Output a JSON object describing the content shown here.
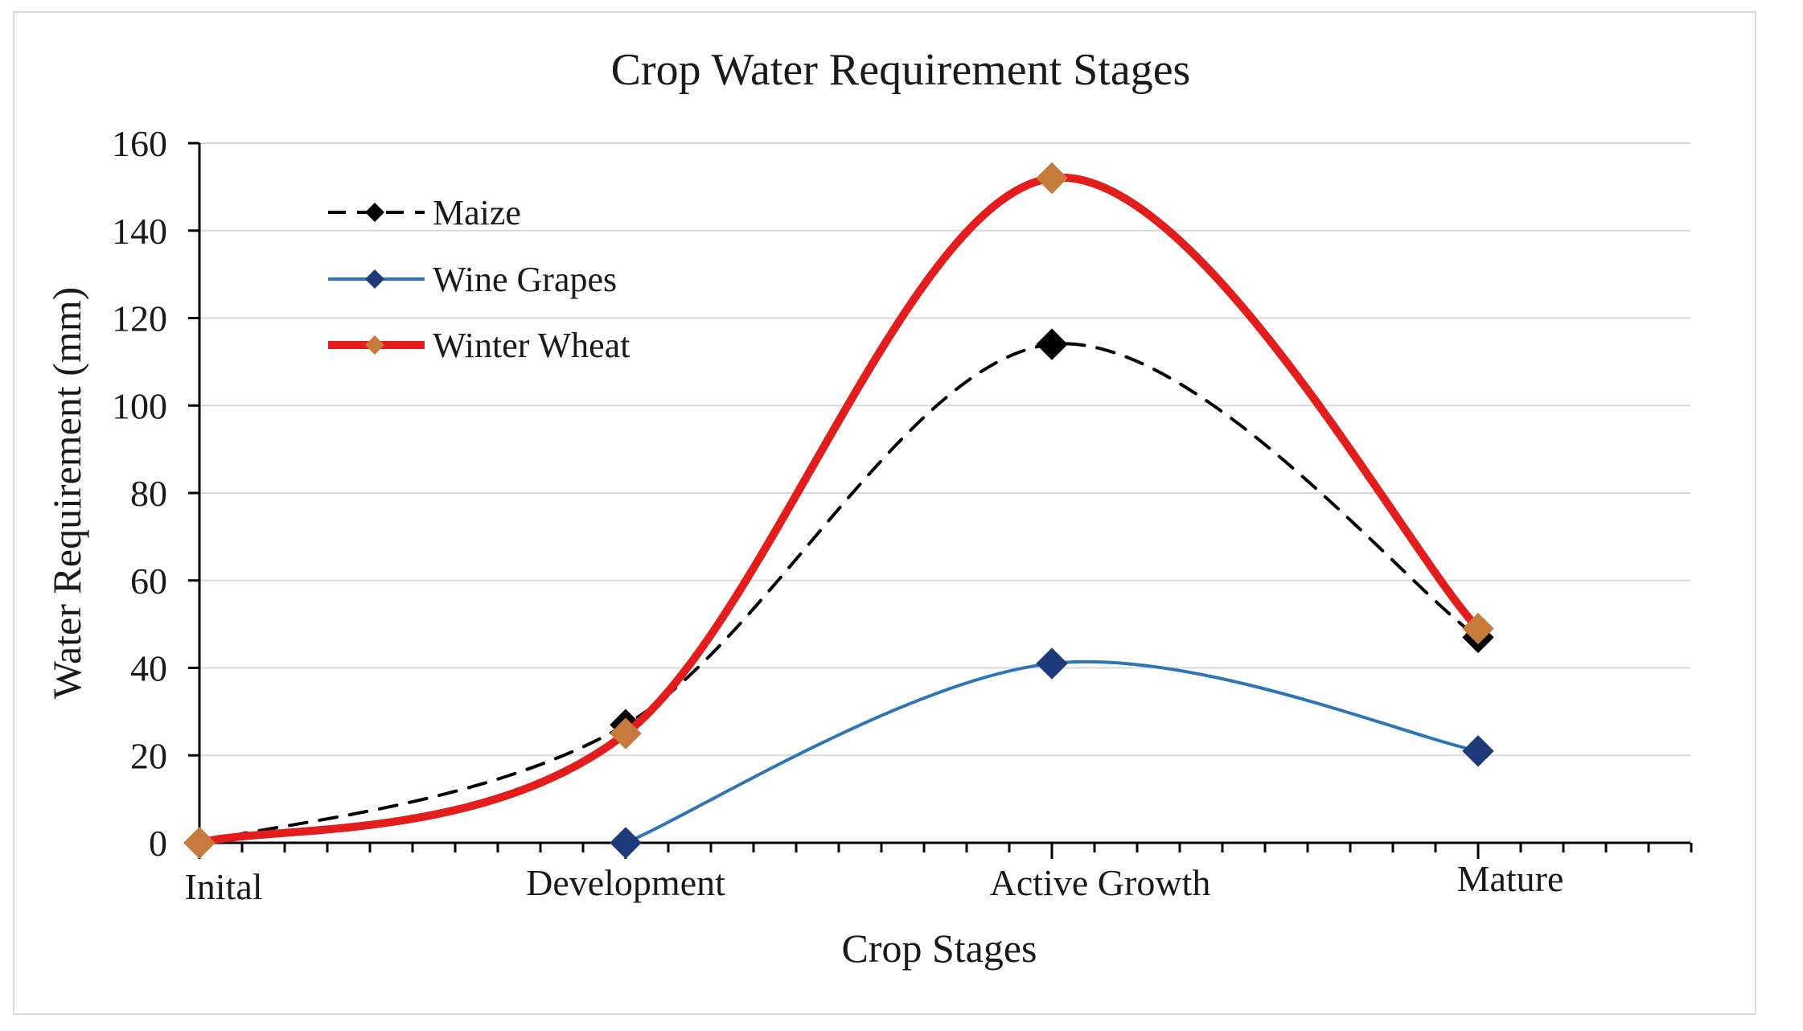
{
  "chart_data": {
    "type": "line",
    "title": "Crop Water Requirement Stages",
    "xlabel": "Crop Stages",
    "ylabel": "Water Requirement (mm)",
    "categories": [
      "Inital",
      "Development",
      "Active Growth",
      "Mature"
    ],
    "ylim": [
      0,
      160
    ],
    "yticks": [
      0,
      20,
      40,
      60,
      80,
      100,
      120,
      140,
      160
    ],
    "grid": "horizontal",
    "legend_position": "top-left",
    "series": [
      {
        "name": "Maize",
        "values": [
          0,
          27,
          114,
          47
        ],
        "color": "#000000",
        "marker_color": "#000000",
        "line_style": "dashed"
      },
      {
        "name": "Wine Grapes",
        "values": [
          null,
          0,
          41,
          21
        ],
        "color": "#2e75b6",
        "marker_color": "#1f3a7a",
        "line_style": "solid"
      },
      {
        "name": "Winter Wheat",
        "values": [
          0,
          25,
          152,
          49
        ],
        "color": "#e31c1c",
        "marker_color": "#c67a3c",
        "line_style": "solid"
      }
    ]
  }
}
